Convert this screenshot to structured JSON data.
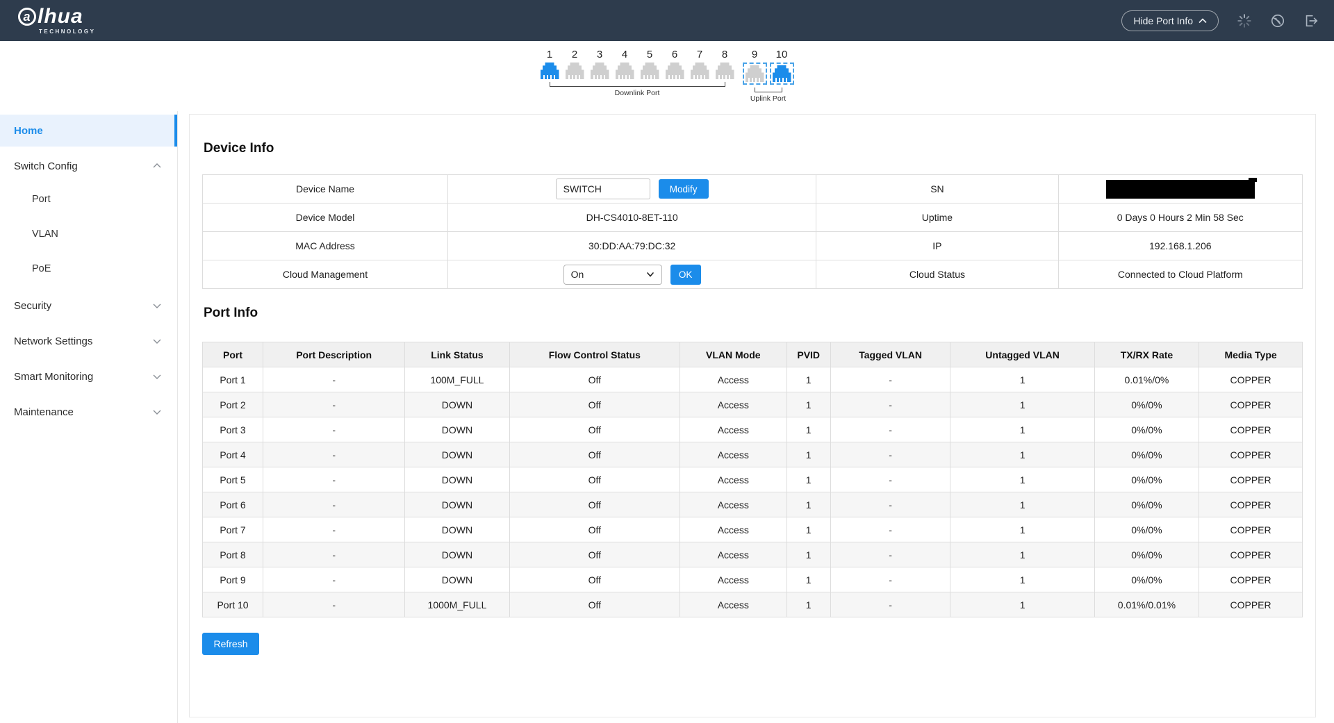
{
  "colors": {
    "accent": "#1b8cea",
    "topbar": "#2e3c4d",
    "port_inactive": "#cfcfcf",
    "uplink_dash": "#49a3e8"
  },
  "topbar": {
    "logo_main": "alhua",
    "logo_first": "a",
    "logo_rest": "lhua",
    "logo_sub": "TECHNOLOGY",
    "hide_port_info_label": "Hide Port Info",
    "icons": [
      "loading-icon",
      "globe-icon",
      "logout-icon"
    ]
  },
  "port_diagram": {
    "downlink_label": "Downlink Port",
    "uplink_label": "Uplink Port",
    "ports": [
      {
        "number": "1",
        "state": "up",
        "uplink": false
      },
      {
        "number": "2",
        "state": "down",
        "uplink": false
      },
      {
        "number": "3",
        "state": "down",
        "uplink": false
      },
      {
        "number": "4",
        "state": "down",
        "uplink": false
      },
      {
        "number": "5",
        "state": "down",
        "uplink": false
      },
      {
        "number": "6",
        "state": "down",
        "uplink": false
      },
      {
        "number": "7",
        "state": "down",
        "uplink": false
      },
      {
        "number": "8",
        "state": "down",
        "uplink": false
      },
      {
        "number": "9",
        "state": "down",
        "uplink": true
      },
      {
        "number": "10",
        "state": "up",
        "uplink": true
      }
    ]
  },
  "sidebar": {
    "home_label": "Home",
    "switch_config_label": "Switch Config",
    "switch_config_children": [
      "Port",
      "VLAN",
      "PoE"
    ],
    "security_label": "Security",
    "network_settings_label": "Network Settings",
    "smart_monitoring_label": "Smart Monitoring",
    "maintenance_label": "Maintenance"
  },
  "device_info": {
    "title": "Device Info",
    "device_name_label": "Device Name",
    "device_name_value": "SWITCH",
    "modify_label": "Modify",
    "sn_label": "SN",
    "sn_redacted": true,
    "device_model_label": "Device Model",
    "device_model_value": "DH-CS4010-8ET-110",
    "uptime_label": "Uptime",
    "uptime_value": "0 Days 0 Hours 2 Min 58 Sec",
    "mac_label": "MAC Address",
    "mac_value": "30:DD:AA:79:DC:32",
    "ip_label": "IP",
    "ip_value": "192.168.1.206",
    "cloud_mgmt_label": "Cloud Management",
    "cloud_mgmt_value": "On",
    "ok_label": "OK",
    "cloud_status_label": "Cloud Status",
    "cloud_status_value": "Connected to Cloud Platform"
  },
  "port_info": {
    "title": "Port Info",
    "columns": [
      "Port",
      "Port Description",
      "Link Status",
      "Flow Control Status",
      "VLAN Mode",
      "PVID",
      "Tagged VLAN",
      "Untagged VLAN",
      "TX/RX Rate",
      "Media Type"
    ],
    "rows": [
      [
        "Port 1",
        "-",
        "100M_FULL",
        "Off",
        "Access",
        "1",
        "-",
        "1",
        "0.01%/0%",
        "COPPER"
      ],
      [
        "Port 2",
        "-",
        "DOWN",
        "Off",
        "Access",
        "1",
        "-",
        "1",
        "0%/0%",
        "COPPER"
      ],
      [
        "Port 3",
        "-",
        "DOWN",
        "Off",
        "Access",
        "1",
        "-",
        "1",
        "0%/0%",
        "COPPER"
      ],
      [
        "Port 4",
        "-",
        "DOWN",
        "Off",
        "Access",
        "1",
        "-",
        "1",
        "0%/0%",
        "COPPER"
      ],
      [
        "Port 5",
        "-",
        "DOWN",
        "Off",
        "Access",
        "1",
        "-",
        "1",
        "0%/0%",
        "COPPER"
      ],
      [
        "Port 6",
        "-",
        "DOWN",
        "Off",
        "Access",
        "1",
        "-",
        "1",
        "0%/0%",
        "COPPER"
      ],
      [
        "Port 7",
        "-",
        "DOWN",
        "Off",
        "Access",
        "1",
        "-",
        "1",
        "0%/0%",
        "COPPER"
      ],
      [
        "Port 8",
        "-",
        "DOWN",
        "Off",
        "Access",
        "1",
        "-",
        "1",
        "0%/0%",
        "COPPER"
      ],
      [
        "Port 9",
        "-",
        "DOWN",
        "Off",
        "Access",
        "1",
        "-",
        "1",
        "0%/0%",
        "COPPER"
      ],
      [
        "Port 10",
        "-",
        "1000M_FULL",
        "Off",
        "Access",
        "1",
        "-",
        "1",
        "0.01%/0.01%",
        "COPPER"
      ]
    ],
    "refresh_label": "Refresh"
  }
}
